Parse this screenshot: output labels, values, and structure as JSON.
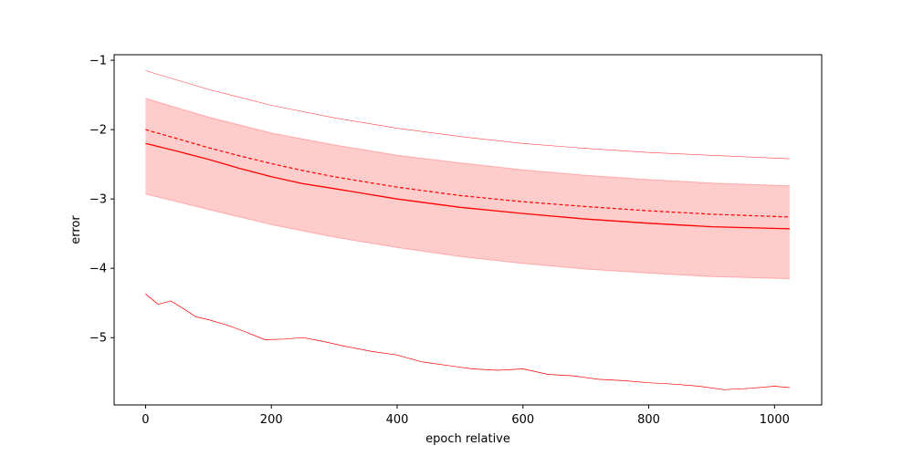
{
  "chart_data": {
    "type": "line",
    "title": "",
    "xlabel": "epoch relative",
    "ylabel": "error",
    "xlim": [
      -50,
      1075
    ],
    "ylim": [
      -5.97,
      -0.92
    ],
    "xticks": [
      0,
      200,
      400,
      600,
      800,
      1000
    ],
    "yticks": [
      -1,
      -2,
      -3,
      -4,
      -5
    ],
    "grid": false,
    "legend": "none",
    "color": "#ff0000",
    "band": {
      "x": [
        0,
        100,
        200,
        300,
        400,
        500,
        600,
        700,
        800,
        900,
        1024
      ],
      "upper": [
        -1.55,
        -1.82,
        -2.05,
        -2.22,
        -2.37,
        -2.48,
        -2.58,
        -2.66,
        -2.72,
        -2.77,
        -2.81
      ],
      "lower": [
        -2.93,
        -3.15,
        -3.37,
        -3.55,
        -3.7,
        -3.83,
        -3.93,
        -4.01,
        -4.07,
        -4.12,
        -4.15
      ]
    },
    "series": [
      {
        "style": "solid",
        "x": [
          0,
          50,
          100,
          150,
          200,
          250,
          300,
          400,
          500,
          600,
          700,
          800,
          900,
          1024
        ],
        "values": [
          -2.2,
          -2.31,
          -2.43,
          -2.56,
          -2.68,
          -2.78,
          -2.85,
          -3.0,
          -3.12,
          -3.21,
          -3.29,
          -3.35,
          -3.4,
          -3.43
        ]
      },
      {
        "style": "dashed",
        "x": [
          0,
          50,
          100,
          150,
          200,
          250,
          300,
          400,
          500,
          600,
          700,
          800,
          900,
          1024
        ],
        "values": [
          -2.0,
          -2.13,
          -2.26,
          -2.38,
          -2.49,
          -2.59,
          -2.68,
          -2.83,
          -2.95,
          -3.04,
          -3.11,
          -3.17,
          -3.22,
          -3.26
        ]
      },
      {
        "style": "thin-upper",
        "x": [
          0,
          100,
          200,
          300,
          400,
          500,
          600,
          700,
          800,
          900,
          1024
        ],
        "values": [
          -1.15,
          -1.42,
          -1.65,
          -1.83,
          -1.98,
          -2.1,
          -2.2,
          -2.27,
          -2.33,
          -2.37,
          -2.42
        ]
      },
      {
        "style": "thin-lower",
        "x": [
          0,
          20,
          40,
          60,
          80,
          100,
          130,
          160,
          190,
          220,
          250,
          280,
          320,
          360,
          400,
          440,
          480,
          520,
          560,
          600,
          640,
          680,
          720,
          760,
          800,
          840,
          880,
          920,
          960,
          1000,
          1024
        ],
        "values": [
          -4.37,
          -4.52,
          -4.47,
          -4.58,
          -4.7,
          -4.74,
          -4.82,
          -4.92,
          -5.03,
          -5.02,
          -5.0,
          -5.05,
          -5.13,
          -5.2,
          -5.25,
          -5.35,
          -5.4,
          -5.45,
          -5.47,
          -5.45,
          -5.53,
          -5.55,
          -5.6,
          -5.62,
          -5.65,
          -5.67,
          -5.7,
          -5.75,
          -5.73,
          -5.7,
          -5.72
        ]
      }
    ]
  }
}
